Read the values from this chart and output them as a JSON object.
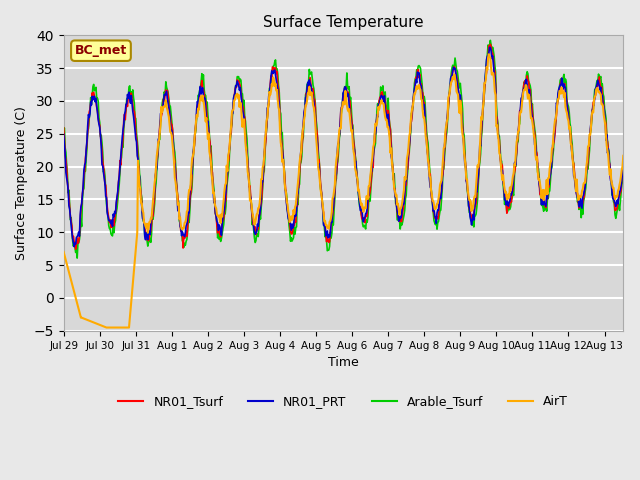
{
  "title": "Surface Temperature",
  "ylabel": "Surface Temperature (C)",
  "xlabel": "Time",
  "annotation": "BC_met",
  "ylim": [
    -5,
    40
  ],
  "background_color": "#e8e8e8",
  "plot_bg_color": "#d8d8d8",
  "grid_color": "#ffffff",
  "legend": [
    {
      "label": "NR01_Tsurf",
      "color": "#ff0000"
    },
    {
      "label": "NR01_PRT",
      "color": "#0000cc"
    },
    {
      "label": "Arable_Tsurf",
      "color": "#00cc00"
    },
    {
      "label": "AirT",
      "color": "#ffaa00"
    }
  ]
}
